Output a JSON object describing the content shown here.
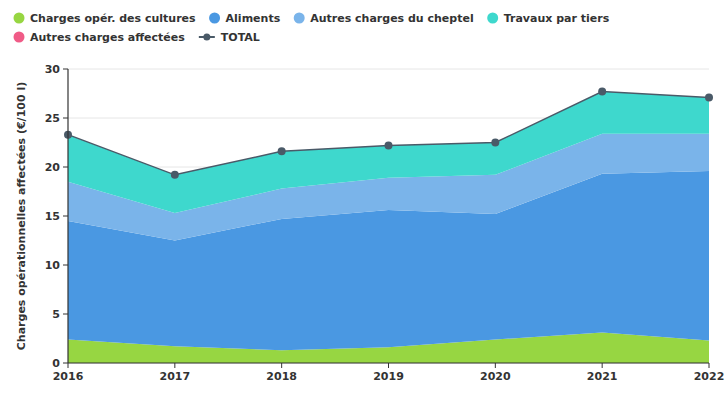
{
  "chart_data": {
    "type": "area",
    "stacked": true,
    "y_label": "Charges opérationnelles affectées (€/100 l)",
    "x": [
      2016,
      2017,
      2018,
      2019,
      2020,
      2021,
      2022
    ],
    "xlim": [
      2016,
      2022
    ],
    "xticks": [
      2016,
      2017,
      2018,
      2019,
      2020,
      2021,
      2022
    ],
    "ylim": [
      0,
      30
    ],
    "yticks": [
      0,
      5,
      10,
      15,
      20,
      25,
      30
    ],
    "grid": true,
    "legend": "top",
    "series": [
      {
        "name": "Charges opér. des cultures",
        "color": "#97d642",
        "values": [
          2.4,
          1.7,
          1.3,
          1.6,
          2.4,
          3.1,
          2.3
        ]
      },
      {
        "name": "Aliments",
        "color": "#4a98e2",
        "values": [
          12.1,
          10.8,
          13.4,
          14.0,
          12.8,
          16.2,
          17.3
        ]
      },
      {
        "name": "Autres charges du cheptel",
        "color": "#7ab4ea",
        "values": [
          4.0,
          2.8,
          3.1,
          3.3,
          4.0,
          4.1,
          3.8
        ]
      },
      {
        "name": "Travaux par tiers",
        "color": "#3ed8cd",
        "values": [
          4.8,
          3.9,
          3.8,
          3.3,
          3.3,
          4.3,
          3.7
        ]
      },
      {
        "name": "Autres charges affectées",
        "color": "#f05b87",
        "values": [
          0,
          0,
          0,
          0,
          0,
          0,
          0
        ]
      },
      {
        "name": "TOTAL",
        "color": "#4a5a68",
        "type": "line",
        "marker": "circle",
        "values": [
          23.3,
          19.2,
          21.6,
          22.2,
          22.5,
          27.7,
          27.1
        ]
      }
    ]
  }
}
